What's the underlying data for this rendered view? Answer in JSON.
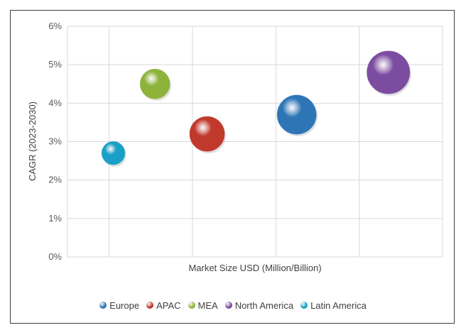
{
  "chart_data": {
    "type": "scatter",
    "title": "",
    "xlabel": "Market Size USD (Million/Billion)",
    "ylabel": "CAGR (2023-2030)",
    "ylim": [
      0,
      6
    ],
    "y_ticks": [
      "0%",
      "1%",
      "2%",
      "3%",
      "4%",
      "5%",
      "6%"
    ],
    "x_ticks_shown": false,
    "grid": true,
    "legend_position": "bottom",
    "series": [
      {
        "name": "Europe",
        "x": 5.5,
        "y": 3.7,
        "size": 4,
        "color": "#2e75b6"
      },
      {
        "name": "APAC",
        "x": 3.35,
        "y": 3.2,
        "size": 3,
        "color": "#c0392b"
      },
      {
        "name": "MEA",
        "x": 2.1,
        "y": 4.5,
        "size": 2,
        "color": "#8db33a"
      },
      {
        "name": "North America",
        "x": 7.7,
        "y": 4.8,
        "size": 5,
        "color": "#7b4ca0"
      },
      {
        "name": "Latin America",
        "x": 1.1,
        "y": 2.7,
        "size": 1,
        "color": "#1aa0c6"
      }
    ]
  }
}
